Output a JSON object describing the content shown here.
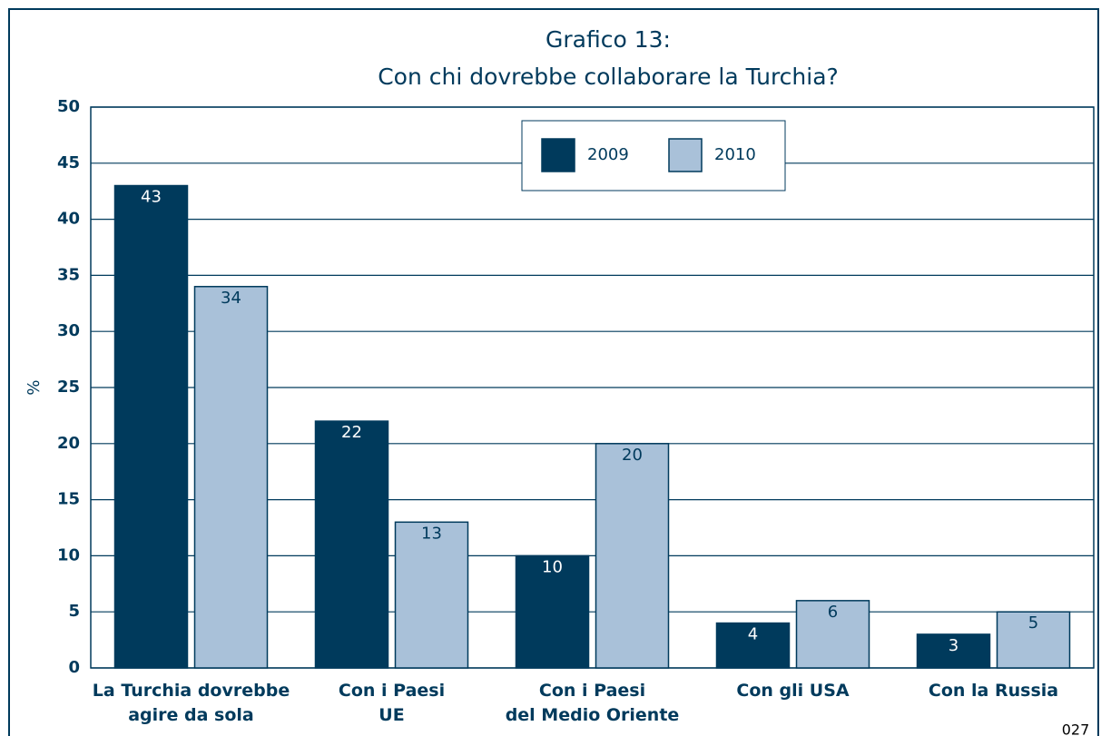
{
  "chart_data": {
    "type": "bar",
    "title": "Grafico 13:",
    "subtitle": "Con chi dovrebbe collaborare la Turchia?",
    "ylabel": "%",
    "categories": [
      "La Turchia dovrebbe\nagire da sola",
      "Con i Paesi\nUE",
      "Con i Paesi\ndel Medio Oriente",
      "Con gli USA",
      "Con la Russia"
    ],
    "series": [
      {
        "name": "2009",
        "color": "#003a5c",
        "values": [
          43,
          22,
          10,
          4,
          3
        ]
      },
      {
        "name": "2010",
        "color": "#a9c1d9",
        "values": [
          34,
          13,
          20,
          6,
          5
        ]
      }
    ],
    "ylim": [
      0,
      50
    ],
    "yticks": [
      0,
      5,
      10,
      15,
      20,
      25,
      30,
      35,
      40,
      45,
      50
    ],
    "grid": true,
    "legend": "top"
  },
  "page_number": "027"
}
